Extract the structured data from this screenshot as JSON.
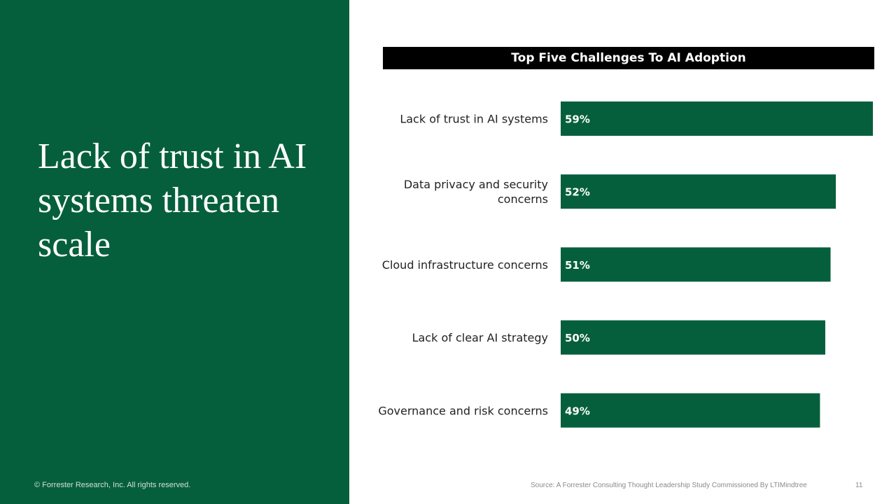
{
  "slide": {
    "headline": "Lack of trust in AI systems threaten scale",
    "copyright": "© Forrester Research, Inc. All rights reserved.",
    "source": "Source: A Forrester Consulting Thought Leadership Study Commissioned By LTIMindtree",
    "page_number": "11"
  },
  "colors": {
    "panel": "#065f3c",
    "bar": "#065f3c",
    "title_bar": "#000000"
  },
  "chart_data": {
    "type": "bar",
    "orientation": "horizontal",
    "title": "Top Five Challenges To AI Adoption",
    "categories": [
      [
        "Lack of trust in AI systems"
      ],
      [
        "Data privacy and security",
        "concerns"
      ],
      [
        "Cloud infrastructure concerns"
      ],
      [
        "Lack of clear AI strategy"
      ],
      [
        "Governance and risk concerns"
      ]
    ],
    "values": [
      59,
      52,
      51,
      50,
      49
    ],
    "data_labels": [
      "59%",
      "52%",
      "51%",
      "50%",
      "49%"
    ],
    "unit": "%",
    "xlim": [
      0,
      59
    ],
    "grid": false,
    "legend": "none"
  }
}
